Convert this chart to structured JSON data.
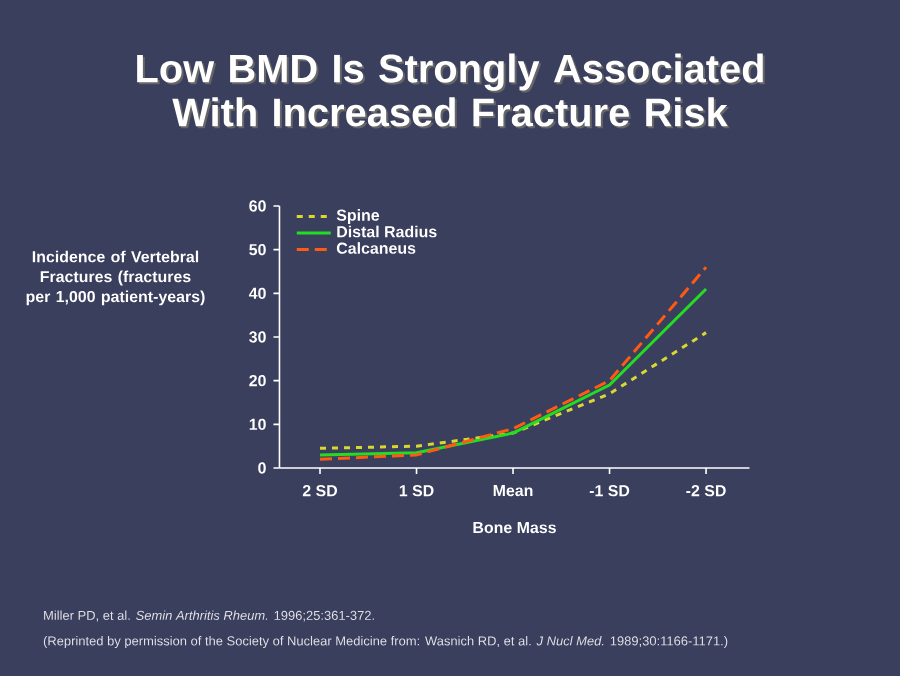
{
  "chart_data": {
    "type": "line",
    "title": "Low BMD Is Strongly Associated With Increased Fracture Risk",
    "xlabel": "Bone Mass",
    "ylabel": "Incidence of Vertebral Fractures (fractures per 1,000 patient-years)",
    "categories": [
      "2 SD",
      "1 SD",
      "Mean",
      "-1 SD",
      "-2 SD"
    ],
    "series": [
      {
        "name": "Spine",
        "color": "#d8d830",
        "line_style": "dotted",
        "values": [
          4.5,
          5,
          8,
          17,
          31
        ]
      },
      {
        "name": "Distal Radius",
        "color": "#22dd22",
        "line_style": "solid",
        "values": [
          3,
          3.5,
          8,
          19,
          41
        ]
      },
      {
        "name": "Calcaneus",
        "color": "#ff5a14",
        "line_style": "dashed",
        "values": [
          2,
          3,
          9,
          20,
          46
        ]
      }
    ],
    "ylim": [
      0,
      60
    ],
    "yticks": [
      0,
      10,
      20,
      30,
      40,
      50,
      60
    ],
    "legend": "top left",
    "marker": "none",
    "annotations": [
      "Miller PD, et al. *Semin Arthritis Rheum.* 1996;25:361-372.",
      "(Reprinted by permission of the Society of Nuclear Medicine from: Wasnich RD, et al. *J Nucl Med.* 1989;30:1166-1171.)"
    ]
  }
}
